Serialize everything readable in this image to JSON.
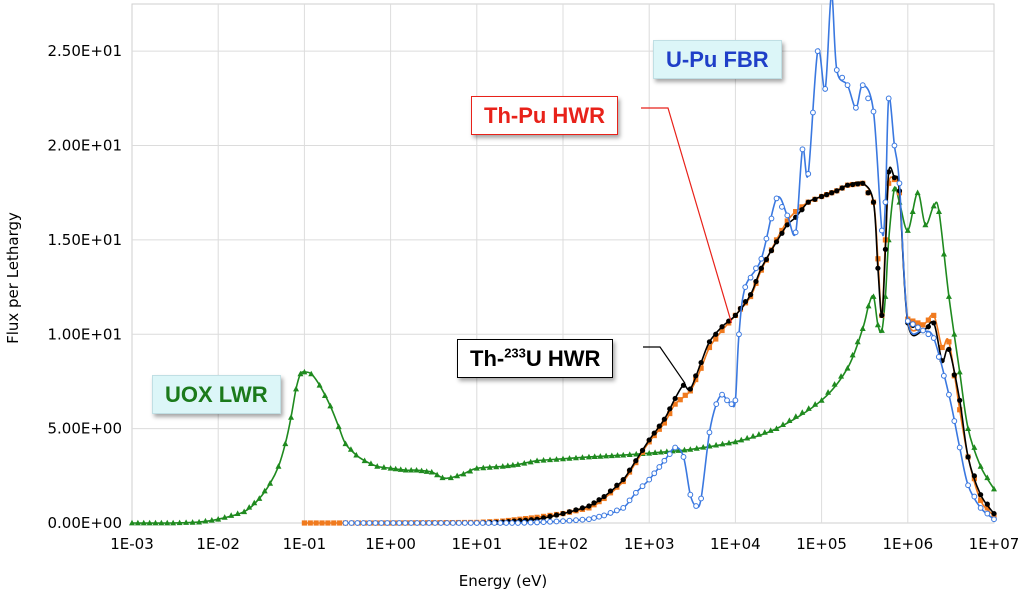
{
  "chart_data": {
    "type": "line",
    "title": "",
    "xlabel": "Energy (eV)",
    "ylabel": "Flux per Lethargy",
    "x_scale": "log",
    "xlim": [
      0.001,
      10000000
    ],
    "ylim": [
      0,
      27.5
    ],
    "grid": true,
    "x_ticks": [
      "1E-03",
      "1E-02",
      "1E-01",
      "1E+00",
      "1E+01",
      "1E+02",
      "1E+03",
      "1E+04",
      "1E+05",
      "1E+06",
      "1E+07"
    ],
    "y_ticks": [
      "0.00E+00",
      "5.00E+00",
      "1.00E+01",
      "1.50E+01",
      "2.00E+01",
      "2.50E+01"
    ],
    "series": [
      {
        "name": "UOX LWR",
        "color": "#1f8a1f",
        "marker": "triangle",
        "points": [
          [
            0.001,
            0.0
          ],
          [
            0.003,
            0.0
          ],
          [
            0.006,
            0.05
          ],
          [
            0.01,
            0.2
          ],
          [
            0.02,
            0.6
          ],
          [
            0.03,
            1.3
          ],
          [
            0.04,
            2.1
          ],
          [
            0.05,
            3.0
          ],
          [
            0.06,
            4.2
          ],
          [
            0.07,
            5.6
          ],
          [
            0.08,
            7.1
          ],
          [
            0.09,
            7.9
          ],
          [
            0.1,
            8.0
          ],
          [
            0.12,
            7.9
          ],
          [
            0.15,
            7.3
          ],
          [
            0.2,
            6.2
          ],
          [
            0.25,
            5.1
          ],
          [
            0.3,
            4.2
          ],
          [
            0.4,
            3.6
          ],
          [
            0.5,
            3.3
          ],
          [
            0.7,
            3.0
          ],
          [
            1.0,
            2.9
          ],
          [
            1.5,
            2.8
          ],
          [
            2.0,
            2.8
          ],
          [
            3.0,
            2.7
          ],
          [
            4.0,
            2.4
          ],
          [
            5.0,
            2.4
          ],
          [
            7.0,
            2.6
          ],
          [
            10,
            2.9
          ],
          [
            20,
            3.0
          ],
          [
            30,
            3.1
          ],
          [
            50,
            3.3
          ],
          [
            100,
            3.4
          ],
          [
            200,
            3.5
          ],
          [
            500,
            3.6
          ],
          [
            1000,
            3.7
          ],
          [
            3000,
            3.9
          ],
          [
            10000,
            4.3
          ],
          [
            30000,
            5.0
          ],
          [
            100000,
            6.5
          ],
          [
            200000,
            8.2
          ],
          [
            300000,
            10.3
          ],
          [
            350000,
            11.5
          ],
          [
            400000,
            12.0
          ],
          [
            450000,
            10.5
          ],
          [
            500000,
            10.2
          ],
          [
            550000,
            12.0
          ],
          [
            600000,
            15.0
          ],
          [
            700000,
            17.7
          ],
          [
            800000,
            17.0
          ],
          [
            1000000,
            15.5
          ],
          [
            1300000,
            17.5
          ],
          [
            1600000,
            15.8
          ],
          [
            2000000,
            16.8
          ],
          [
            2300000,
            16.5
          ],
          [
            3000000,
            12.0
          ],
          [
            4000000,
            8.0
          ],
          [
            5000000,
            5.0
          ],
          [
            7000000,
            3.0
          ],
          [
            10000000,
            1.8
          ]
        ]
      },
      {
        "name": "U-Pu FBR",
        "color": "#3a78e0",
        "marker": "circle-open",
        "points": [
          [
            0.3,
            0.0
          ],
          [
            10,
            0.0
          ],
          [
            30,
            0.0
          ],
          [
            50,
            0.03
          ],
          [
            100,
            0.1
          ],
          [
            200,
            0.2
          ],
          [
            300,
            0.4
          ],
          [
            500,
            0.8
          ],
          [
            700,
            1.6
          ],
          [
            1000,
            2.3
          ],
          [
            1500,
            3.3
          ],
          [
            2000,
            4.0
          ],
          [
            2500,
            3.5
          ],
          [
            3000,
            1.5
          ],
          [
            3500,
            0.9
          ],
          [
            4000,
            1.3
          ],
          [
            5000,
            4.8
          ],
          [
            6000,
            6.3
          ],
          [
            7000,
            6.8
          ],
          [
            8000,
            6.5
          ],
          [
            9000,
            6.3
          ],
          [
            10000,
            6.5
          ],
          [
            11000,
            10.0
          ],
          [
            13000,
            12.5
          ],
          [
            20000,
            14.0
          ],
          [
            30000,
            17.2
          ],
          [
            40000,
            16.3
          ],
          [
            50000,
            15.4
          ],
          [
            60000,
            19.8
          ],
          [
            70000,
            18.5
          ],
          [
            90000,
            25.0
          ],
          [
            110000,
            23.0
          ],
          [
            130000,
            28.0
          ],
          [
            150000,
            24.0
          ],
          [
            200000,
            23.2
          ],
          [
            250000,
            22.0
          ],
          [
            300000,
            23.2
          ],
          [
            400000,
            21.8
          ],
          [
            500000,
            15.5
          ],
          [
            550000,
            17.0
          ],
          [
            600000,
            22.5
          ],
          [
            700000,
            20.0
          ],
          [
            800000,
            18.0
          ],
          [
            1000000,
            10.7
          ],
          [
            1500000,
            10.2
          ],
          [
            2000000,
            9.8
          ],
          [
            3000000,
            6.8
          ],
          [
            4000000,
            4.0
          ],
          [
            5000000,
            2.0
          ],
          [
            7000000,
            0.8
          ],
          [
            10000000,
            0.2
          ]
        ]
      },
      {
        "name": "Th-Pu HWR",
        "color": "#f07a1e",
        "marker": "square",
        "points": [
          [
            0.1,
            0.0
          ],
          [
            0.3,
            0.0
          ],
          [
            1,
            0.0
          ],
          [
            10,
            0.03
          ],
          [
            20,
            0.1
          ],
          [
            50,
            0.3
          ],
          [
            100,
            0.5
          ],
          [
            200,
            0.8
          ],
          [
            300,
            1.3
          ],
          [
            500,
            2.2
          ],
          [
            700,
            3.2
          ],
          [
            1000,
            4.3
          ],
          [
            1500,
            5.3
          ],
          [
            2000,
            6.3
          ],
          [
            3000,
            7.0
          ],
          [
            4000,
            8.2
          ],
          [
            5000,
            9.3
          ],
          [
            7000,
            10.2
          ],
          [
            10000,
            11.0
          ],
          [
            15000,
            12.0
          ],
          [
            20000,
            13.4
          ],
          [
            30000,
            15.0
          ],
          [
            40000,
            16.0
          ],
          [
            50000,
            16.5
          ],
          [
            70000,
            17.0
          ],
          [
            100000,
            17.3
          ],
          [
            150000,
            17.6
          ],
          [
            200000,
            17.9
          ],
          [
            300000,
            18.0
          ],
          [
            400000,
            17.0
          ],
          [
            450000,
            14.0
          ],
          [
            500000,
            11.0
          ],
          [
            550000,
            15.0
          ],
          [
            600000,
            18.0
          ],
          [
            700000,
            18.2
          ],
          [
            800000,
            17.5
          ],
          [
            1000000,
            10.8
          ],
          [
            1500000,
            10.5
          ],
          [
            2000000,
            11.0
          ],
          [
            2500000,
            9.3
          ],
          [
            3000000,
            9.6
          ],
          [
            4000000,
            6.0
          ],
          [
            5000000,
            3.5
          ],
          [
            7000000,
            1.2
          ],
          [
            10000000,
            0.4
          ]
        ]
      },
      {
        "name": "Th-233U HWR",
        "color": "#000000",
        "marker": "circle",
        "points": [
          [
            10,
            0.0
          ],
          [
            20,
            0.05
          ],
          [
            50,
            0.2
          ],
          [
            100,
            0.5
          ],
          [
            200,
            0.9
          ],
          [
            300,
            1.4
          ],
          [
            500,
            2.3
          ],
          [
            700,
            3.3
          ],
          [
            1000,
            4.4
          ],
          [
            1500,
            5.5
          ],
          [
            2000,
            6.6
          ],
          [
            2500,
            7.3
          ],
          [
            3000,
            7.1
          ],
          [
            4000,
            8.5
          ],
          [
            5000,
            9.6
          ],
          [
            7000,
            10.4
          ],
          [
            10000,
            11.0
          ],
          [
            15000,
            12.1
          ],
          [
            20000,
            13.5
          ],
          [
            30000,
            14.9
          ],
          [
            40000,
            15.8
          ],
          [
            50000,
            16.2
          ],
          [
            70000,
            17.0
          ],
          [
            100000,
            17.3
          ],
          [
            150000,
            17.6
          ],
          [
            200000,
            17.9
          ],
          [
            300000,
            18.0
          ],
          [
            400000,
            17.0
          ],
          [
            450000,
            13.5
          ],
          [
            500000,
            11.0
          ],
          [
            550000,
            14.5
          ],
          [
            600000,
            18.6
          ],
          [
            700000,
            18.3
          ],
          [
            800000,
            17.6
          ],
          [
            1000000,
            10.6
          ],
          [
            1500000,
            10.2
          ],
          [
            2000000,
            10.6
          ],
          [
            2500000,
            8.6
          ],
          [
            3000000,
            9.2
          ],
          [
            4000000,
            6.5
          ],
          [
            5000000,
            3.5
          ],
          [
            7000000,
            1.5
          ],
          [
            10000000,
            0.5
          ]
        ]
      }
    ],
    "annotations": [
      {
        "text": "U-Pu FBR",
        "series": "U-Pu FBR"
      },
      {
        "text": "Th-Pu HWR",
        "series": "Th-Pu HWR"
      },
      {
        "text_main": "Th-",
        "text_sup": "233",
        "text_tail": "U HWR",
        "series": "Th-233U HWR"
      },
      {
        "text": "UOX LWR",
        "series": "UOX LWR"
      }
    ]
  }
}
